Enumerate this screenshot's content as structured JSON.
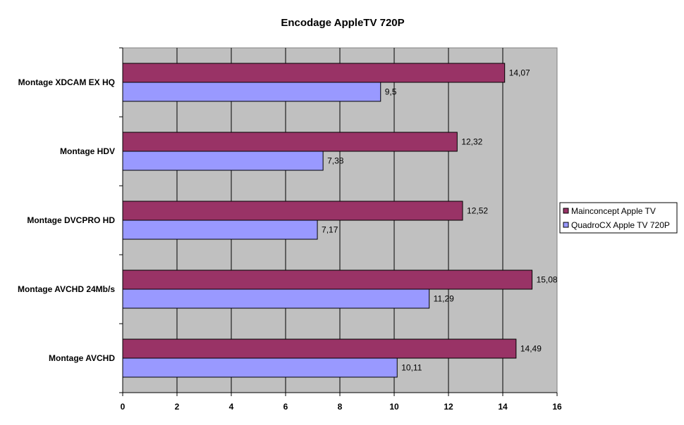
{
  "chart_data": {
    "type": "bar",
    "orientation": "horizontal",
    "title": "Encodage AppleTV 720P",
    "xlabel": "",
    "ylabel": "",
    "xlim": [
      0,
      16
    ],
    "x_ticks": [
      "0",
      "2",
      "4",
      "6",
      "8",
      "10",
      "12",
      "14",
      "16"
    ],
    "grid": true,
    "legend_position": "right",
    "plot_background": "#c0c0c0",
    "categories": [
      "Montage XDCAM EX HQ",
      "Montage HDV",
      "Montage DVCPRO HD",
      "Montage AVCHD 24Mb/s",
      "Montage AVCHD"
    ],
    "series": [
      {
        "name": "Mainconcept Apple TV",
        "color": "#993366",
        "values": [
          14.07,
          12.32,
          12.52,
          15.08,
          14.49
        ],
        "labels": [
          "14,07",
          "12,32",
          "12,52",
          "15,08",
          "14,49"
        ]
      },
      {
        "name": "QuadroCX Apple TV 720P",
        "color": "#9999ff",
        "values": [
          9.5,
          7.38,
          7.17,
          11.29,
          10.11
        ],
        "labels": [
          "9,5",
          "7,38",
          "7,17",
          "11,29",
          "10,11"
        ]
      }
    ]
  }
}
